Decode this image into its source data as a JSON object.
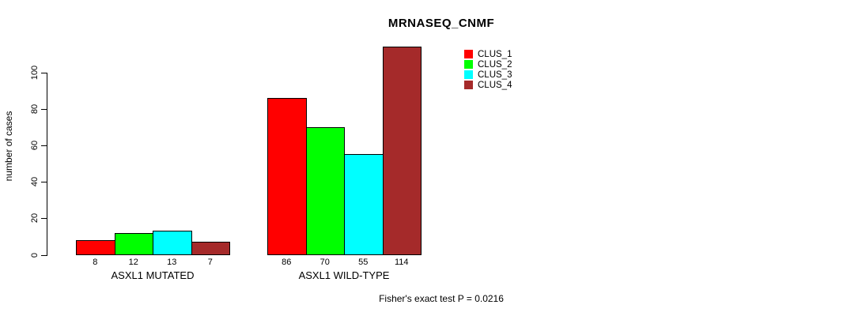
{
  "chart_data": {
    "type": "bar",
    "title": "MRNASEQ_CNMF",
    "ylabel": "number of cases",
    "xlabel": "",
    "ylim": [
      0,
      100
    ],
    "yticks": [
      0,
      20,
      40,
      60,
      80,
      100
    ],
    "grid": false,
    "legend_position": "top-right",
    "annotation": "Fisher's exact test P = 0.0216",
    "categories": [
      "ASXL1 MUTATED",
      "ASXL1 WILD-TYPE"
    ],
    "series": [
      {
        "name": "CLUS_1",
        "color": "#ff0000",
        "values": [
          8,
          86
        ]
      },
      {
        "name": "CLUS_2",
        "color": "#00ff00",
        "values": [
          12,
          70
        ]
      },
      {
        "name": "CLUS_3",
        "color": "#00ffff",
        "values": [
          13,
          55
        ]
      },
      {
        "name": "CLUS_4",
        "color": "#a52a2a",
        "values": [
          7,
          114
        ]
      }
    ],
    "bar_value_labels": [
      [
        8,
        12,
        13,
        7
      ],
      [
        86,
        70,
        55,
        114
      ]
    ],
    "axis_color": "#000000",
    "background_color": "#ffffff"
  }
}
